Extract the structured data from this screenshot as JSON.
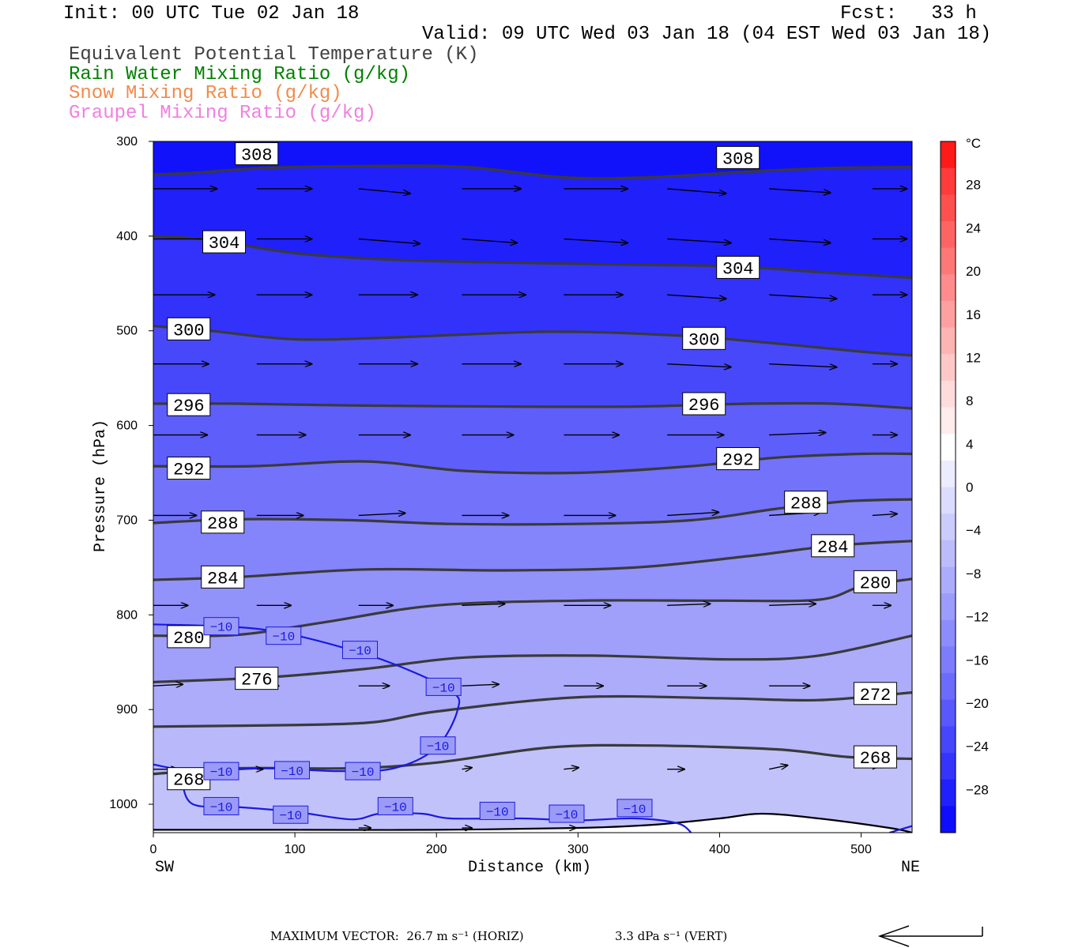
{
  "header": {
    "init": "Init: 00 UTC Tue 02 Jan 18",
    "fcst": "Fcst:   33 h",
    "valid": "Valid: 09 UTC Wed 03 Jan 18 (04 EST Wed 03 Jan 18)",
    "fields": [
      {
        "label": "Equivalent Potential Temperature (K)",
        "color": "#404040"
      },
      {
        "label": "Rain Water Mixing Ratio (g/kg)",
        "color": "#008000"
      },
      {
        "label": "Snow Mixing Ratio (g/kg)",
        "color": "#f08c4c"
      },
      {
        "label": "Graupel Mixing Ratio (g/kg)",
        "color": "#f080e0"
      }
    ]
  },
  "chart_data": {
    "type": "cross-section",
    "xlabel": "Distance (km)",
    "ylabel": "Pressure (hPa)",
    "x_ticks": [
      0,
      100,
      200,
      300,
      400,
      500
    ],
    "y_ticks": [
      300,
      400,
      500,
      600,
      700,
      800,
      900,
      1000
    ],
    "xlim": [
      0,
      536
    ],
    "ylim": [
      300,
      1030
    ],
    "left_end_label": "SW",
    "right_end_label": "NE",
    "colorbar": {
      "unit": "°C",
      "labels": [
        28,
        24,
        20,
        16,
        12,
        8,
        4,
        0,
        -4,
        -8,
        -12,
        -16,
        -20,
        -24,
        -28
      ],
      "bin_colors": [
        "#ff1a1a",
        "#ff3b3b",
        "#ff5050",
        "#ff6464",
        "#ff7878",
        "#ff8c8c",
        "#ffa0a0",
        "#ffb4b4",
        "#ffc8c8",
        "#ffdcdc",
        "#ffecec",
        "#ffffff",
        "#ececff",
        "#dcdcff",
        "#ccccfc",
        "#bcbcfc",
        "#acacfc",
        "#9c9cfc",
        "#8c8cfc",
        "#7c7cfc",
        "#6c6cfc",
        "#5858fc",
        "#4646fc",
        "#3434fc",
        "#2020fc",
        "#0e0efc"
      ]
    },
    "theta_e_contours": [
      {
        "value": 308,
        "points": [
          [
            0,
            335
          ],
          [
            30,
            333
          ],
          [
            80,
            328
          ],
          [
            150,
            326
          ],
          [
            220,
            327
          ],
          [
            290,
            338
          ],
          [
            350,
            338
          ],
          [
            420,
            332
          ],
          [
            480,
            328
          ],
          [
            536,
            327
          ]
        ],
        "labels": [
          [
            73,
            313
          ],
          [
            413,
            317
          ]
        ]
      },
      {
        "value": 304,
        "points": [
          [
            0,
            400
          ],
          [
            40,
            404
          ],
          [
            100,
            418
          ],
          [
            170,
            425
          ],
          [
            250,
            428
          ],
          [
            330,
            430
          ],
          [
            410,
            432
          ],
          [
            470,
            438
          ],
          [
            536,
            444
          ]
        ],
        "labels": [
          [
            50,
            406
          ],
          [
            413,
            433
          ]
        ]
      },
      {
        "value": 300,
        "points": [
          [
            0,
            495
          ],
          [
            40,
            500
          ],
          [
            100,
            509
          ],
          [
            170,
            507
          ],
          [
            280,
            501
          ],
          [
            370,
            505
          ],
          [
            430,
            512
          ],
          [
            500,
            522
          ],
          [
            536,
            526
          ]
        ],
        "labels": [
          [
            25,
            498
          ],
          [
            389,
            508
          ]
        ]
      },
      {
        "value": 296,
        "points": [
          [
            0,
            577
          ],
          [
            60,
            577
          ],
          [
            150,
            579
          ],
          [
            250,
            580
          ],
          [
            340,
            580
          ],
          [
            420,
            577
          ],
          [
            480,
            577
          ],
          [
            536,
            582
          ]
        ],
        "labels": [
          [
            25,
            578
          ],
          [
            389,
            577
          ]
        ]
      },
      {
        "value": 292,
        "points": [
          [
            0,
            643
          ],
          [
            70,
            643
          ],
          [
            150,
            638
          ],
          [
            220,
            648
          ],
          [
            300,
            650
          ],
          [
            380,
            643
          ],
          [
            440,
            634
          ],
          [
            500,
            630
          ],
          [
            536,
            630
          ]
        ],
        "labels": [
          [
            25,
            645
          ],
          [
            413,
            635
          ]
        ]
      },
      {
        "value": 288,
        "points": [
          [
            0,
            703
          ],
          [
            60,
            699
          ],
          [
            140,
            700
          ],
          [
            210,
            704
          ],
          [
            300,
            704
          ],
          [
            380,
            700
          ],
          [
            440,
            688
          ],
          [
            490,
            680
          ],
          [
            536,
            678
          ]
        ],
        "labels": [
          [
            49,
            702
          ],
          [
            461,
            681
          ]
        ]
      },
      {
        "value": 284,
        "points": [
          [
            0,
            763
          ],
          [
            60,
            760
          ],
          [
            150,
            752
          ],
          [
            250,
            753
          ],
          [
            340,
            750
          ],
          [
            420,
            738
          ],
          [
            480,
            727
          ],
          [
            536,
            722
          ]
        ],
        "labels": [
          [
            49,
            760
          ],
          [
            480,
            727
          ]
        ]
      },
      {
        "value": 280,
        "points": [
          [
            0,
            822
          ],
          [
            60,
            821
          ],
          [
            120,
            808
          ],
          [
            200,
            790
          ],
          [
            300,
            785
          ],
          [
            400,
            785
          ],
          [
            470,
            784
          ],
          [
            500,
            770
          ],
          [
            536,
            762
          ]
        ],
        "labels": [
          [
            25,
            823
          ],
          [
            510,
            765
          ]
        ]
      },
      {
        "value": 276,
        "points": [
          [
            0,
            871
          ],
          [
            80,
            866
          ],
          [
            150,
            857
          ],
          [
            220,
            845
          ],
          [
            310,
            843
          ],
          [
            410,
            847
          ],
          [
            470,
            843
          ],
          [
            536,
            822
          ]
        ],
        "labels": [
          [
            73,
            867
          ]
        ]
      },
      {
        "value": 272,
        "points": [
          [
            0,
            918
          ],
          [
            60,
            917
          ],
          [
            150,
            914
          ],
          [
            200,
            902
          ],
          [
            300,
            887
          ],
          [
            400,
            888
          ],
          [
            470,
            890
          ],
          [
            536,
            882
          ]
        ],
        "labels": [
          [
            510,
            883
          ]
        ]
      },
      {
        "value": 268,
        "points": [
          [
            0,
            968
          ],
          [
            60,
            962
          ],
          [
            140,
            962
          ],
          [
            200,
            956
          ],
          [
            280,
            940
          ],
          [
            350,
            938
          ],
          [
            440,
            942
          ],
          [
            490,
            950
          ],
          [
            536,
            952
          ]
        ],
        "labels": [
          [
            25,
            973
          ],
          [
            510,
            950
          ]
        ]
      }
    ],
    "temp_minus10_contours": [
      {
        "value": -10,
        "points": [
          [
            0,
            810
          ],
          [
            60,
            813
          ],
          [
            95,
            820
          ],
          [
            135,
            835
          ],
          [
            170,
            852
          ],
          [
            210,
            880
          ],
          [
            215,
            900
          ],
          [
            200,
            940
          ],
          [
            170,
            962
          ],
          [
            130,
            965
          ],
          [
            80,
            962
          ],
          [
            30,
            965
          ],
          [
            0,
            958
          ]
        ]
      },
      {
        "value": -10,
        "points": [
          [
            20,
            975
          ],
          [
            28,
            1000
          ],
          [
            60,
            1003
          ],
          [
            100,
            1008
          ],
          [
            140,
            1016
          ],
          [
            160,
            1010
          ],
          [
            190,
            1010
          ],
          [
            210,
            1015
          ],
          [
            260,
            1015
          ],
          [
            300,
            1017
          ],
          [
            340,
            1015
          ],
          [
            370,
            1020
          ],
          [
            380,
            1030
          ]
        ]
      },
      {
        "value": -10,
        "points": [
          [
            520,
            1030
          ],
          [
            536,
            1023
          ]
        ]
      }
    ],
    "temp_labels": [
      [
        48,
        812
      ],
      [
        92,
        822
      ],
      [
        146,
        837
      ],
      [
        205,
        876
      ],
      [
        201,
        938
      ],
      [
        48,
        965
      ],
      [
        98,
        964
      ],
      [
        148,
        965
      ],
      [
        48,
        1002
      ],
      [
        97,
        1011
      ],
      [
        171,
        1002
      ],
      [
        243,
        1007
      ],
      [
        292,
        1010
      ],
      [
        340,
        1004
      ]
    ],
    "temp_label_text": "−10",
    "wind_vectors": [
      [
        0,
        350,
        52,
        0
      ],
      [
        73,
        350,
        45,
        0
      ],
      [
        145,
        350,
        42,
        6
      ],
      [
        218,
        350,
        48,
        0
      ],
      [
        290,
        350,
        52,
        0
      ],
      [
        363,
        350,
        48,
        6
      ],
      [
        435,
        350,
        50,
        5
      ],
      [
        508,
        350,
        28,
        0
      ],
      [
        0,
        403,
        50,
        0
      ],
      [
        73,
        403,
        45,
        0
      ],
      [
        145,
        403,
        50,
        6
      ],
      [
        218,
        403,
        45,
        5
      ],
      [
        290,
        403,
        52,
        5
      ],
      [
        363,
        403,
        52,
        5
      ],
      [
        435,
        403,
        50,
        5
      ],
      [
        508,
        403,
        28,
        0
      ],
      [
        0,
        462,
        50,
        0
      ],
      [
        73,
        462,
        45,
        0
      ],
      [
        145,
        462,
        48,
        0
      ],
      [
        218,
        462,
        52,
        0
      ],
      [
        290,
        462,
        48,
        0
      ],
      [
        363,
        462,
        48,
        5
      ],
      [
        435,
        462,
        55,
        5
      ],
      [
        508,
        462,
        28,
        0
      ],
      [
        0,
        535,
        45,
        0
      ],
      [
        73,
        535,
        45,
        0
      ],
      [
        145,
        535,
        48,
        0
      ],
      [
        218,
        535,
        48,
        0
      ],
      [
        290,
        535,
        48,
        0
      ],
      [
        363,
        535,
        52,
        4
      ],
      [
        435,
        535,
        55,
        4
      ],
      [
        508,
        535,
        20,
        0
      ],
      [
        0,
        610,
        44,
        0
      ],
      [
        73,
        610,
        40,
        0
      ],
      [
        145,
        610,
        42,
        0
      ],
      [
        218,
        610,
        42,
        0
      ],
      [
        290,
        610,
        45,
        0
      ],
      [
        363,
        610,
        46,
        0
      ],
      [
        435,
        610,
        46,
        -3
      ],
      [
        508,
        610,
        20,
        0
      ],
      [
        0,
        695,
        35,
        0
      ],
      [
        73,
        695,
        38,
        0
      ],
      [
        145,
        695,
        38,
        -3
      ],
      [
        218,
        695,
        38,
        0
      ],
      [
        290,
        695,
        42,
        0
      ],
      [
        363,
        695,
        42,
        -4
      ],
      [
        435,
        695,
        42,
        -4
      ],
      [
        508,
        695,
        20,
        -2
      ],
      [
        0,
        790,
        28,
        0
      ],
      [
        73,
        790,
        28,
        0
      ],
      [
        145,
        790,
        28,
        0
      ],
      [
        218,
        790,
        35,
        -2
      ],
      [
        290,
        790,
        38,
        0
      ],
      [
        363,
        790,
        35,
        -2
      ],
      [
        435,
        790,
        38,
        -2
      ],
      [
        508,
        790,
        15,
        0
      ],
      [
        0,
        875,
        24,
        -2
      ],
      [
        73,
        875,
        18,
        0
      ],
      [
        145,
        875,
        25,
        0
      ],
      [
        218,
        875,
        30,
        -2
      ],
      [
        290,
        875,
        32,
        0
      ],
      [
        363,
        875,
        32,
        0
      ],
      [
        435,
        875,
        33,
        0
      ],
      [
        508,
        875,
        10,
        0
      ],
      [
        0,
        963,
        20,
        0
      ],
      [
        73,
        963,
        5,
        0
      ],
      [
        145,
        963,
        16,
        0
      ],
      [
        218,
        963,
        8,
        -2
      ],
      [
        290,
        963,
        12,
        -2
      ],
      [
        363,
        963,
        14,
        0
      ],
      [
        435,
        963,
        15,
        -5
      ],
      [
        508,
        963,
        12,
        -8
      ],
      [
        145,
        1025,
        10,
        0
      ],
      [
        218,
        1025,
        8,
        0
      ],
      [
        290,
        1025,
        10,
        0
      ]
    ],
    "terrain_surface": [
      [
        0,
        1027
      ],
      [
        100,
        1027
      ],
      [
        200,
        1027
      ],
      [
        300,
        1025
      ],
      [
        350,
        1022
      ],
      [
        400,
        1015
      ],
      [
        430,
        1010
      ],
      [
        470,
        1015
      ],
      [
        520,
        1025
      ],
      [
        536,
        1030
      ]
    ],
    "max_vector": "MAXIMUM VECTOR:  26.7 m s⁻¹ (HORIZ)",
    "max_vector_vert": "3.3 dPa s⁻¹ (VERT)"
  }
}
